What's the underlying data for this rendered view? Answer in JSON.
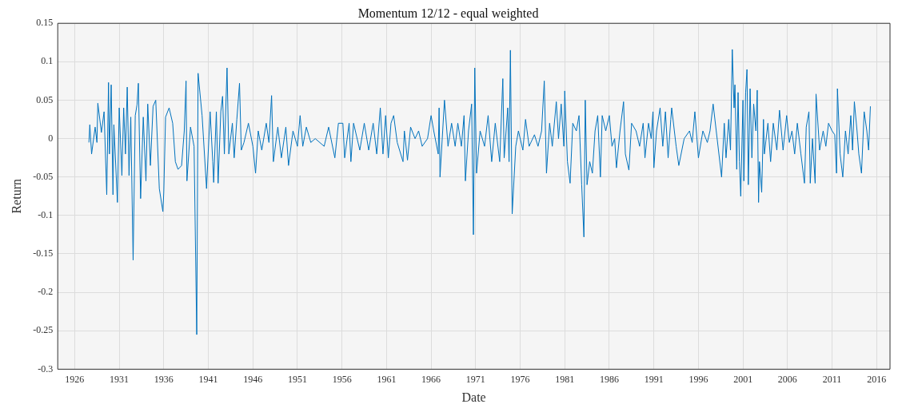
{
  "chart_data": {
    "type": "line",
    "title": "Momentum 12/12 - equal weighted",
    "xlabel": "Date",
    "ylabel": "Return",
    "xlim": [
      1924.1,
      2017.5
    ],
    "xticks": [
      1926,
      1931,
      1936,
      1941,
      1946,
      1951,
      1956,
      1961,
      1966,
      1971,
      1976,
      1981,
      1986,
      1991,
      1996,
      2001,
      2006,
      2011,
      2016
    ],
    "ylim": [
      -0.3,
      0.15
    ],
    "yticks": [
      -0.3,
      -0.25,
      -0.2,
      -0.15,
      -0.1,
      -0.05,
      0,
      0.05,
      0.1,
      0.15
    ],
    "grid": true,
    "legend": false,
    "marker": "none",
    "line_style": "solid",
    "series": [
      {
        "color": "#0072bd",
        "x": [
          1927.6,
          1927.7,
          1927.9,
          1928.3,
          1928.5,
          1928.6,
          1929.0,
          1929.3,
          1929.6,
          1929.8,
          1929.9,
          1930.1,
          1930.3,
          1930.4,
          1930.8,
          1931.0,
          1931.3,
          1931.5,
          1931.7,
          1931.9,
          1932.1,
          1932.3,
          1932.56,
          1932.8,
          1933.0,
          1933.15,
          1933.4,
          1933.7,
          1934.0,
          1934.2,
          1934.5,
          1934.8,
          1935.1,
          1935.5,
          1935.9,
          1936.0,
          1936.2,
          1936.6,
          1937.0,
          1937.3,
          1937.6,
          1938.0,
          1938.3,
          1938.5,
          1938.6,
          1939.0,
          1939.4,
          1939.7,
          1939.85,
          1940.3,
          1940.8,
          1941.2,
          1941.5,
          1941.6,
          1941.9,
          1942.1,
          1942.4,
          1942.6,
          1942.8,
          1943.1,
          1943.3,
          1943.7,
          1943.9,
          1944.2,
          1944.5,
          1944.7,
          1945.0,
          1945.5,
          1946.0,
          1946.3,
          1946.6,
          1947.0,
          1947.5,
          1947.8,
          1948.1,
          1948.3,
          1948.8,
          1949.2,
          1949.7,
          1950.0,
          1950.5,
          1951.0,
          1951.3,
          1951.6,
          1952.0,
          1952.5,
          1953.0,
          1954.0,
          1954.5,
          1955.2,
          1955.6,
          1956.1,
          1956.3,
          1956.8,
          1957.0,
          1957.3,
          1958.0,
          1958.5,
          1959.0,
          1959.5,
          1959.9,
          1960.3,
          1960.6,
          1960.9,
          1961.2,
          1961.5,
          1961.8,
          1962.2,
          1962.85,
          1963.0,
          1963.35,
          1963.7,
          1964.2,
          1964.6,
          1965.0,
          1965.6,
          1966.0,
          1966.3,
          1966.8,
          1966.9,
          1967.0,
          1967.3,
          1967.5,
          1967.9,
          1968.3,
          1968.7,
          1969.0,
          1969.4,
          1969.7,
          1969.85,
          1970.2,
          1970.55,
          1970.75,
          1970.9,
          1971.1,
          1971.5,
          1972.0,
          1972.4,
          1972.8,
          1973.2,
          1973.7,
          1974.05,
          1974.2,
          1974.6,
          1974.75,
          1974.9,
          1975.1,
          1975.5,
          1975.8,
          1976.3,
          1976.6,
          1977.0,
          1977.6,
          1978.0,
          1978.4,
          1978.7,
          1978.95,
          1979.3,
          1979.6,
          1980.05,
          1980.3,
          1980.6,
          1980.9,
          1981.0,
          1981.3,
          1981.6,
          1981.9,
          1982.3,
          1982.6,
          1982.9,
          1983.15,
          1983.3,
          1983.5,
          1983.8,
          1984.1,
          1984.4,
          1984.7,
          1985.0,
          1985.2,
          1985.6,
          1986.0,
          1986.3,
          1986.6,
          1986.8,
          1987.2,
          1987.6,
          1987.8,
          1988.2,
          1988.5,
          1989.0,
          1989.4,
          1989.8,
          1990.0,
          1990.4,
          1990.7,
          1990.9,
          1991.0,
          1991.3,
          1991.7,
          1992.0,
          1992.3,
          1992.6,
          1992.9,
          1993.0,
          1993.5,
          1993.8,
          1994.4,
          1995.0,
          1995.3,
          1995.6,
          1996.0,
          1996.5,
          1997.0,
          1997.3,
          1997.65,
          1998.0,
          1998.6,
          1998.9,
          1999.1,
          1999.4,
          1999.6,
          1999.8,
          2000.0,
          2000.1,
          2000.3,
          2000.45,
          2000.6,
          2000.75,
          2001.0,
          2001.1,
          2001.3,
          2001.45,
          2001.6,
          2001.8,
          2002.0,
          2002.2,
          2002.45,
          2002.6,
          2002.75,
          2002.85,
          2003.1,
          2003.3,
          2003.4,
          2003.8,
          2004.1,
          2004.4,
          2004.8,
          2005.1,
          2005.5,
          2005.9,
          2006.2,
          2006.5,
          2006.8,
          2007.1,
          2007.5,
          2007.9,
          2008.1,
          2008.4,
          2008.55,
          2008.8,
          2009.1,
          2009.2,
          2009.6,
          2010.0,
          2010.3,
          2010.6,
          2011.0,
          2011.3,
          2011.5,
          2011.6,
          2011.9,
          2012.2,
          2012.5,
          2012.8,
          2013.1,
          2013.3,
          2013.5,
          2013.8,
          2014.0,
          2014.3,
          2014.6,
          2014.9,
          2015.1,
          2015.3
        ],
        "values": [
          -0.005,
          0.018,
          -0.02,
          0.015,
          -0.005,
          0.046,
          0.008,
          0.035,
          -0.073,
          0.073,
          -0.02,
          0.07,
          -0.073,
          0.018,
          -0.083,
          0.04,
          -0.048,
          0.04,
          -0.02,
          0.067,
          -0.048,
          0.028,
          -0.158,
          0.03,
          0.044,
          0.072,
          -0.078,
          0.028,
          -0.055,
          0.045,
          -0.035,
          0.042,
          0.05,
          -0.065,
          -0.095,
          -0.07,
          0.028,
          0.04,
          0.02,
          -0.03,
          -0.04,
          -0.035,
          0.01,
          0.075,
          -0.055,
          0.015,
          -0.01,
          -0.255,
          0.085,
          0.03,
          -0.065,
          0.035,
          -0.03,
          -0.057,
          0.035,
          -0.058,
          0.035,
          0.055,
          -0.02,
          0.092,
          -0.02,
          0.02,
          -0.025,
          0.025,
          0.072,
          -0.015,
          -0.005,
          0.02,
          -0.01,
          -0.045,
          0.01,
          -0.015,
          0.02,
          -0.005,
          0.056,
          -0.03,
          0.015,
          -0.025,
          0.015,
          -0.035,
          0.01,
          -0.01,
          0.03,
          -0.01,
          0.015,
          -0.005,
          0.0,
          -0.01,
          0.015,
          -0.025,
          0.02,
          0.02,
          -0.025,
          0.02,
          -0.03,
          0.02,
          -0.015,
          0.02,
          -0.015,
          0.02,
          -0.02,
          0.04,
          -0.02,
          0.03,
          -0.025,
          0.02,
          0.03,
          -0.005,
          -0.03,
          0.01,
          -0.028,
          0.015,
          0.0,
          0.01,
          -0.01,
          0.0,
          0.03,
          0.01,
          -0.02,
          0.04,
          -0.05,
          0.01,
          0.05,
          -0.01,
          0.02,
          -0.01,
          0.02,
          -0.01,
          0.03,
          -0.055,
          0.01,
          0.045,
          -0.125,
          0.092,
          -0.045,
          0.01,
          -0.01,
          0.03,
          -0.03,
          0.02,
          -0.03,
          0.078,
          -0.025,
          0.04,
          -0.03,
          0.115,
          -0.098,
          -0.01,
          0.01,
          -0.015,
          0.025,
          -0.01,
          0.005,
          -0.01,
          0.01,
          0.075,
          -0.045,
          0.02,
          -0.01,
          0.048,
          0.0,
          0.045,
          -0.01,
          0.062,
          -0.03,
          -0.058,
          0.02,
          0.01,
          0.03,
          -0.06,
          -0.128,
          0.05,
          -0.06,
          -0.03,
          -0.045,
          0.01,
          0.03,
          -0.05,
          0.03,
          0.01,
          0.03,
          -0.01,
          0.0,
          -0.038,
          0.01,
          0.048,
          -0.02,
          -0.041,
          0.02,
          0.01,
          -0.01,
          0.02,
          -0.025,
          0.02,
          0.0,
          0.035,
          -0.038,
          0.01,
          0.04,
          -0.01,
          0.035,
          -0.025,
          0.025,
          0.04,
          -0.01,
          -0.035,
          0.0,
          0.01,
          -0.005,
          0.035,
          -0.025,
          0.01,
          -0.005,
          0.01,
          0.045,
          0.01,
          -0.05,
          0.02,
          -0.025,
          0.025,
          -0.015,
          0.116,
          0.04,
          0.07,
          -0.04,
          0.06,
          -0.03,
          -0.075,
          0.05,
          -0.055,
          0.06,
          0.09,
          -0.06,
          0.065,
          -0.025,
          0.045,
          0.01,
          0.063,
          -0.083,
          -0.03,
          -0.07,
          0.025,
          -0.02,
          0.02,
          -0.03,
          0.02,
          -0.015,
          0.037,
          -0.015,
          0.03,
          -0.005,
          0.01,
          -0.02,
          0.02,
          -0.02,
          -0.058,
          0.015,
          0.035,
          -0.058,
          0.0,
          -0.058,
          0.058,
          -0.015,
          0.01,
          -0.01,
          0.02,
          0.01,
          0.005,
          -0.045,
          0.065,
          -0.02,
          -0.05,
          0.01,
          -0.02,
          0.03,
          -0.015,
          0.048,
          0.01,
          -0.02,
          -0.045,
          0.035,
          0.01,
          -0.015,
          0.042
        ]
      }
    ]
  }
}
